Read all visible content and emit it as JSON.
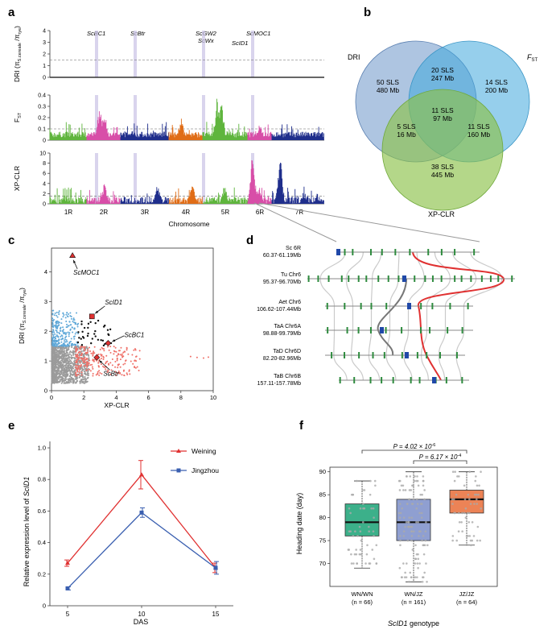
{
  "panel_labels": {
    "a": "a",
    "b": "b",
    "c": "c",
    "d": "d",
    "e": "e",
    "f": "f"
  },
  "colors": {
    "pink": "#d84ea8",
    "green": "#5fb53d",
    "navy": "#1f2e8c",
    "orange": "#e06d17",
    "grey": "#9b9b9b",
    "red": "#e03131",
    "blue": "#3a5fb0",
    "lightblue": "#5fa8d8",
    "salmon": "#ef7068",
    "venn_dri": "#6c96c9",
    "venn_fst": "#3fa8dd",
    "venn_xp": "#8cc24a",
    "box_ww": "#3cb08a",
    "box_wj": "#8f9fd1",
    "box_jj": "#ec8356"
  },
  "panel_a": {
    "genes": [
      "ScBC1",
      "ScBtr",
      "ScGW2",
      "ScWx",
      "ScID1",
      "ScMOC1"
    ],
    "chromosomes": [
      "1R",
      "2R",
      "3R",
      "4R",
      "5R",
      "6R",
      "7R"
    ],
    "xlabel": "Chromosome",
    "tracks": [
      {
        "label": "DRI (π",
        "sub": "S.cereale",
        "tail": " /π",
        "sub2": "rye",
        "tail2": ")",
        "ticks": [
          "0",
          "1",
          "2",
          "3",
          "4"
        ],
        "ymax": 4
      },
      {
        "label": "F",
        "sub": "ST",
        "ticks": [
          "0",
          "0.1",
          "0.2",
          "0.3",
          "0.4"
        ],
        "ymax": 0.4
      },
      {
        "label": "XP-CLR",
        "ticks": [
          "0",
          "2",
          "4",
          "6",
          "8",
          "10"
        ],
        "ymax": 10
      }
    ]
  },
  "panel_b": {
    "set_labels": {
      "dri": "DRI",
      "fst": "F",
      "fst_sub": "ST",
      "xp": "XP-CLR"
    },
    "regions": [
      {
        "key": "dri_only",
        "l1": "50 SLS",
        "l2": "480 Mb"
      },
      {
        "key": "dri_fst",
        "l1": "20 SLS",
        "l2": "247 Mb"
      },
      {
        "key": "fst_only",
        "l1": "14 SLS",
        "l2": "200 Mb"
      },
      {
        "key": "all",
        "l1": "11 SLS",
        "l2": "97 Mb"
      },
      {
        "key": "dri_xp",
        "l1": "5 SLS",
        "l2": "16 Mb"
      },
      {
        "key": "fst_xp",
        "l1": "11 SLS",
        "l2": "160 Mb"
      },
      {
        "key": "xp_only",
        "l1": "38 SLS",
        "l2": "445 Mb"
      }
    ]
  },
  "chart_data": [
    {
      "panel": "c",
      "type": "scatter",
      "xlabel": "XP-CLR",
      "ylabel": "DRI (π S.cereale / π rye)",
      "xlim": [
        0,
        10
      ],
      "ylim": [
        0,
        4.8
      ],
      "xticks": [
        "0",
        "2",
        "4",
        "6",
        "8",
        "10"
      ],
      "yticks": [
        "0",
        "1",
        "2",
        "3",
        "4"
      ],
      "highlight": [
        {
          "gene": "ScMOC1",
          "x": 1.3,
          "y": 4.55,
          "shape": "triangle"
        },
        {
          "gene": "ScID1",
          "x": 2.5,
          "y": 2.5,
          "shape": "square"
        },
        {
          "gene": "ScBC1",
          "x": 3.5,
          "y": 1.6,
          "shape": "diamond"
        },
        {
          "gene": "ScBtr",
          "x": 2.8,
          "y": 1.12,
          "shape": "diamond"
        }
      ]
    },
    {
      "panel": "e",
      "type": "line",
      "title": "",
      "xlabel": "DAS",
      "ylabel": "Relative expression level of ScID1",
      "x": [
        5,
        10,
        15
      ],
      "ylim": [
        0,
        1.0
      ],
      "yticks": [
        "0",
        "0.2",
        "0.4",
        "0.6",
        "0.8",
        "1.0"
      ],
      "xticks": [
        "5",
        "10",
        "15"
      ],
      "series": [
        {
          "name": "Weining",
          "values": [
            0.27,
            0.83,
            0.24
          ],
          "errors": [
            0.02,
            0.09,
            0.03
          ]
        },
        {
          "name": "Jingzhou",
          "values": [
            0.11,
            0.59,
            0.24
          ],
          "errors": [
            0.01,
            0.03,
            0.04
          ]
        }
      ]
    },
    {
      "panel": "f",
      "type": "box",
      "ylabel": "Heading date (day)",
      "xlabel": "ScID1 genotype",
      "ylim": [
        65,
        91
      ],
      "yticks": [
        "70",
        "75",
        "80",
        "85",
        "90"
      ],
      "categories": [
        "WN/WN",
        "WN/JZ",
        "JZ/JZ"
      ],
      "counts": [
        "(n = 66)",
        "(n = 161)",
        "(n = 64)"
      ],
      "boxes": [
        {
          "min": 69,
          "q1": 76,
          "median": 79,
          "q3": 83,
          "max": 88
        },
        {
          "min": 66,
          "q1": 75,
          "median": 79,
          "q3": 84,
          "max": 90
        },
        {
          "min": 74,
          "q1": 81,
          "median": 84,
          "q3": 86,
          "max": 90
        }
      ],
      "pvalues": [
        {
          "text": "P = 4.02 × 10",
          "exp": "-6",
          "from": 0,
          "to": 2
        },
        {
          "text": "P = 6.17 × 10",
          "exp": "-4",
          "from": 1,
          "to": 2
        }
      ]
    }
  ],
  "panel_d": {
    "tracks": [
      {
        "name": "Sc 6R",
        "range": "60.37-61.19Mb"
      },
      {
        "name": "Tu Chr6",
        "range": "95.37-96.70Mb"
      },
      {
        "name": "Aet Chr6",
        "range": "106.62-107.44Mb"
      },
      {
        "name": "TaA Chr6A",
        "range": "98.88-99.79Mb"
      },
      {
        "name": "TaD Chr6D",
        "range": "82.20-82.96Mb"
      },
      {
        "name": "TaB Chr6B",
        "range": "157.11-157.78Mb"
      }
    ]
  }
}
